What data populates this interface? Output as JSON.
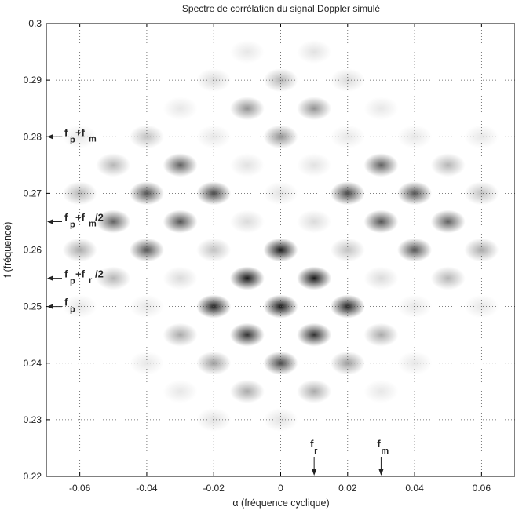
{
  "chart_data": {
    "type": "heatmap",
    "title": "Spectre de corrélation du signal Doppler simulé",
    "xlabel": "α (fréquence cyclique)",
    "ylabel": "f (fréquence)",
    "xlim": [
      -0.07,
      0.07
    ],
    "ylim": [
      0.22,
      0.3
    ],
    "xticks": [
      -0.06,
      -0.04,
      -0.02,
      0,
      0.02,
      0.04,
      0.06
    ],
    "xtick_labels": [
      "-0.06",
      "-0.04",
      "-0.02",
      "0",
      "0.02",
      "0.04",
      "0.06"
    ],
    "yticks": [
      0.22,
      0.23,
      0.24,
      0.25,
      0.26,
      0.27,
      0.28,
      0.29,
      0.3
    ],
    "ytick_labels": [
      "0.22",
      "0.23",
      "0.24",
      "0.25",
      "0.26",
      "0.27",
      "0.28",
      "0.29",
      "0.3"
    ],
    "grid": true,
    "colormap": "gray-inverted",
    "peaks": [
      {
        "x": 0,
        "y": 0.29,
        "v": 0.3
      },
      {
        "x": -0.02,
        "y": 0.29,
        "v": 0.15
      },
      {
        "x": 0.02,
        "y": 0.29,
        "v": 0.15
      },
      {
        "x": -0.01,
        "y": 0.295,
        "v": 0.1
      },
      {
        "x": 0.01,
        "y": 0.295,
        "v": 0.12
      },
      {
        "x": -0.01,
        "y": 0.285,
        "v": 0.45
      },
      {
        "x": 0.01,
        "y": 0.285,
        "v": 0.45
      },
      {
        "x": -0.03,
        "y": 0.285,
        "v": 0.1
      },
      {
        "x": 0.03,
        "y": 0.285,
        "v": 0.1
      },
      {
        "x": 0,
        "y": 0.28,
        "v": 0.45
      },
      {
        "x": -0.04,
        "y": 0.28,
        "v": 0.25
      },
      {
        "x": 0.04,
        "y": 0.28,
        "v": 0.1
      },
      {
        "x": -0.02,
        "y": 0.28,
        "v": 0.1
      },
      {
        "x": 0.02,
        "y": 0.28,
        "v": 0.1
      },
      {
        "x": 0.06,
        "y": 0.28,
        "v": 0.1
      },
      {
        "x": -0.06,
        "y": 0.28,
        "v": 0.1
      },
      {
        "x": -0.05,
        "y": 0.275,
        "v": 0.3
      },
      {
        "x": -0.03,
        "y": 0.275,
        "v": 0.65
      },
      {
        "x": -0.01,
        "y": 0.275,
        "v": 0.12
      },
      {
        "x": 0.01,
        "y": 0.275,
        "v": 0.12
      },
      {
        "x": 0.03,
        "y": 0.275,
        "v": 0.65
      },
      {
        "x": 0.05,
        "y": 0.275,
        "v": 0.3
      },
      {
        "x": -0.06,
        "y": 0.27,
        "v": 0.3
      },
      {
        "x": -0.04,
        "y": 0.27,
        "v": 0.7
      },
      {
        "x": -0.02,
        "y": 0.27,
        "v": 0.75
      },
      {
        "x": 0,
        "y": 0.27,
        "v": 0.12
      },
      {
        "x": 0.02,
        "y": 0.27,
        "v": 0.75
      },
      {
        "x": 0.04,
        "y": 0.27,
        "v": 0.7
      },
      {
        "x": 0.06,
        "y": 0.27,
        "v": 0.25
      },
      {
        "x": -0.05,
        "y": 0.265,
        "v": 0.65
      },
      {
        "x": -0.03,
        "y": 0.265,
        "v": 0.7
      },
      {
        "x": -0.01,
        "y": 0.265,
        "v": 0.15
      },
      {
        "x": 0.01,
        "y": 0.265,
        "v": 0.15
      },
      {
        "x": 0.03,
        "y": 0.265,
        "v": 0.7
      },
      {
        "x": 0.05,
        "y": 0.265,
        "v": 0.65
      },
      {
        "x": -0.06,
        "y": 0.26,
        "v": 0.35
      },
      {
        "x": -0.04,
        "y": 0.26,
        "v": 0.7
      },
      {
        "x": -0.02,
        "y": 0.26,
        "v": 0.25
      },
      {
        "x": 0,
        "y": 0.26,
        "v": 0.95
      },
      {
        "x": 0.02,
        "y": 0.26,
        "v": 0.25
      },
      {
        "x": 0.04,
        "y": 0.26,
        "v": 0.7
      },
      {
        "x": 0.06,
        "y": 0.26,
        "v": 0.35
      },
      {
        "x": -0.05,
        "y": 0.255,
        "v": 0.3
      },
      {
        "x": -0.03,
        "y": 0.255,
        "v": 0.15
      },
      {
        "x": -0.01,
        "y": 0.255,
        "v": 0.95
      },
      {
        "x": 0.01,
        "y": 0.255,
        "v": 0.95
      },
      {
        "x": 0.03,
        "y": 0.255,
        "v": 0.15
      },
      {
        "x": 0.05,
        "y": 0.255,
        "v": 0.3
      },
      {
        "x": -0.06,
        "y": 0.25,
        "v": 0.1
      },
      {
        "x": -0.04,
        "y": 0.25,
        "v": 0.1
      },
      {
        "x": -0.02,
        "y": 0.25,
        "v": 0.9
      },
      {
        "x": 0,
        "y": 0.25,
        "v": 0.95
      },
      {
        "x": 0.02,
        "y": 0.25,
        "v": 0.9
      },
      {
        "x": 0.04,
        "y": 0.25,
        "v": 0.1
      },
      {
        "x": 0.06,
        "y": 0.25,
        "v": 0.1
      },
      {
        "x": -0.03,
        "y": 0.245,
        "v": 0.35
      },
      {
        "x": -0.01,
        "y": 0.245,
        "v": 0.85
      },
      {
        "x": 0.01,
        "y": 0.245,
        "v": 0.85
      },
      {
        "x": 0.03,
        "y": 0.245,
        "v": 0.35
      },
      {
        "x": -0.04,
        "y": 0.24,
        "v": 0.1
      },
      {
        "x": -0.02,
        "y": 0.24,
        "v": 0.4
      },
      {
        "x": 0,
        "y": 0.24,
        "v": 0.75
      },
      {
        "x": 0.02,
        "y": 0.24,
        "v": 0.4
      },
      {
        "x": 0.04,
        "y": 0.24,
        "v": 0.1
      },
      {
        "x": -0.03,
        "y": 0.235,
        "v": 0.1
      },
      {
        "x": -0.01,
        "y": 0.235,
        "v": 0.35
      },
      {
        "x": 0.01,
        "y": 0.235,
        "v": 0.35
      },
      {
        "x": 0.03,
        "y": 0.235,
        "v": 0.1
      },
      {
        "x": -0.02,
        "y": 0.23,
        "v": 0.12
      },
      {
        "x": 0,
        "y": 0.23,
        "v": 0.12
      }
    ],
    "annotations": [
      {
        "text": "f",
        "sub": "p",
        "sup_text": "+f",
        "sup_sub": "m",
        "y": 0.28,
        "side": "left"
      },
      {
        "text": "f",
        "sub": "p",
        "sup_text": "+f",
        "sup_sub": "m",
        "tail": "/2",
        "y": 0.265,
        "side": "left"
      },
      {
        "text": "f",
        "sub": "p",
        "sup_text": "+f",
        "sup_sub": "r",
        "tail": "/2",
        "y": 0.255,
        "side": "left"
      },
      {
        "text": "f",
        "sub": "p",
        "y": 0.25,
        "side": "left"
      },
      {
        "text": "f",
        "sub": "r",
        "x": 0.01,
        "side": "bottom"
      },
      {
        "text": "f",
        "sub": "m",
        "x": 0.03,
        "side": "bottom"
      }
    ]
  }
}
